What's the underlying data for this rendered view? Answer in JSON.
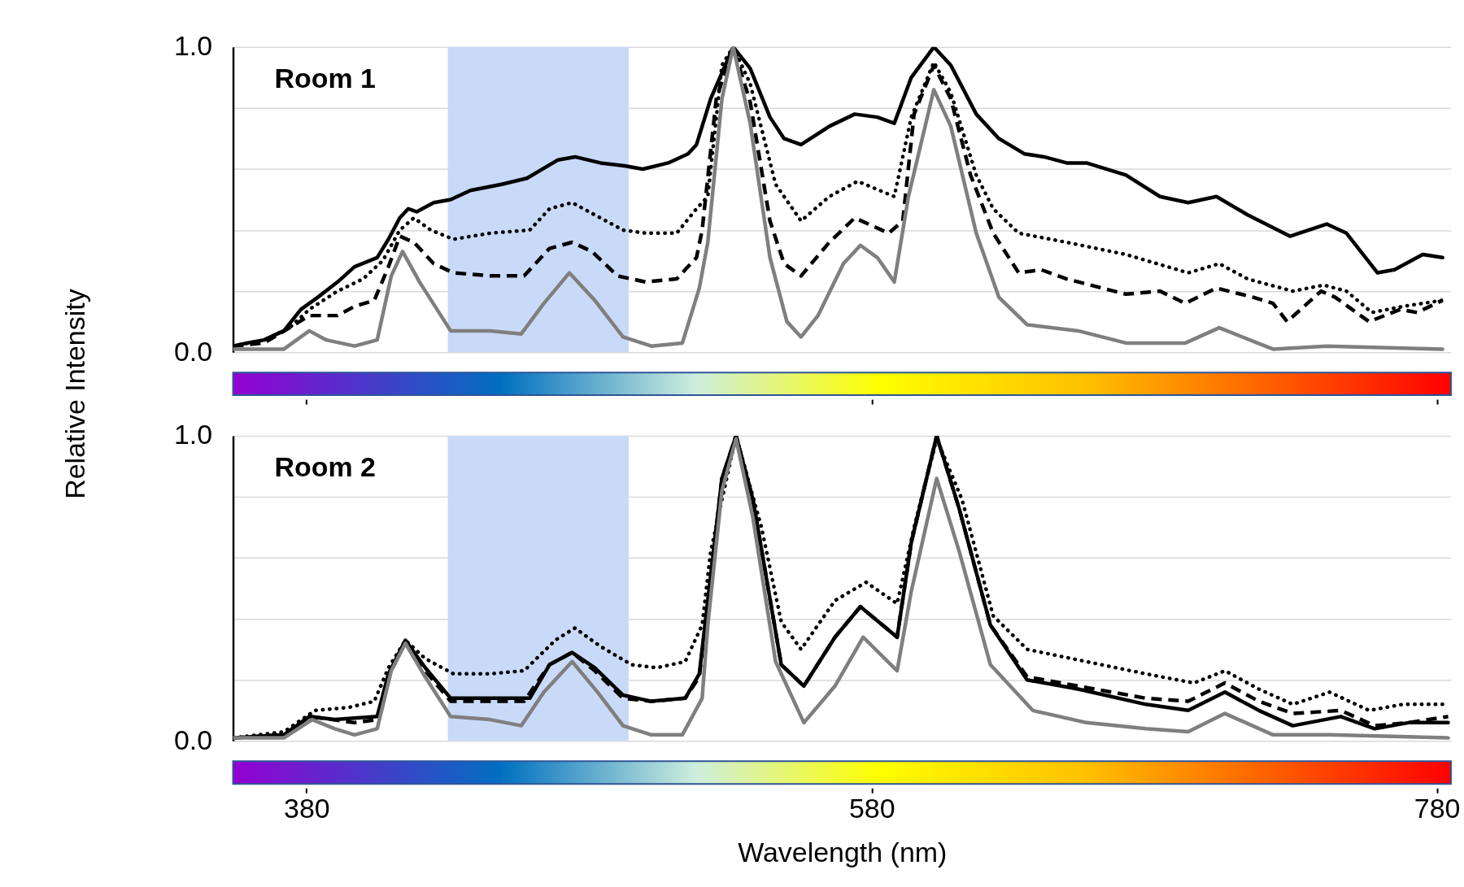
{
  "chart_data": [
    {
      "type": "line",
      "title": "Room 1",
      "ylabel": "Relative Intensity",
      "xlim": [
        354,
        785
      ],
      "ylim": [
        0,
        1
      ],
      "xticks": [
        380,
        580,
        780
      ],
      "yticks": [
        {
          "value": 0,
          "label": "0.0"
        },
        {
          "value": 0.2,
          "label": null
        },
        {
          "value": 0.4,
          "label": null
        },
        {
          "value": 0.6,
          "label": null
        },
        {
          "value": 0.8,
          "label": null
        },
        {
          "value": 1,
          "label": "1.0"
        }
      ],
      "grid": "y",
      "tick_labels": "y",
      "bands": [
        {
          "axis": "x",
          "from": 430,
          "to": 494,
          "color": "#c9daf8"
        }
      ],
      "series": [
        {
          "color": "#000000",
          "line_style": "solid",
          "x": [
            354,
            359,
            365,
            372,
            378,
            384,
            391,
            397,
            405,
            409,
            413,
            416,
            419,
            425,
            431,
            438,
            449,
            458,
            469,
            475,
            484,
            493,
            499,
            508,
            515,
            518,
            523,
            531,
            537,
            544,
            549,
            555,
            565,
            574,
            582,
            588,
            594,
            602,
            608,
            617,
            625,
            634,
            641,
            649,
            656,
            670,
            682,
            692,
            702,
            713,
            728,
            741,
            748,
            759,
            765,
            775,
            782
          ],
          "values": [
            0.02,
            0.03,
            0.04,
            0.07,
            0.14,
            0.18,
            0.23,
            0.28,
            0.31,
            0.37,
            0.44,
            0.47,
            0.46,
            0.49,
            0.5,
            0.53,
            0.55,
            0.57,
            0.63,
            0.64,
            0.62,
            0.61,
            0.6,
            0.62,
            0.65,
            0.68,
            0.83,
            1.0,
            0.93,
            0.77,
            0.7,
            0.68,
            0.74,
            0.78,
            0.77,
            0.75,
            0.9,
            1.0,
            0.94,
            0.78,
            0.7,
            0.65,
            0.64,
            0.62,
            0.62,
            0.58,
            0.51,
            0.49,
            0.51,
            0.45,
            0.38,
            0.42,
            0.39,
            0.26,
            0.27,
            0.32,
            0.31
          ]
        },
        {
          "color": "#000000",
          "line_style": "dotted",
          "x": [
            354,
            365,
            374,
            381,
            391,
            400,
            407,
            413,
            418,
            424,
            432,
            445,
            459,
            466,
            474,
            482,
            492,
            500,
            511,
            518,
            522,
            527,
            531,
            537,
            546,
            555,
            565,
            575,
            588,
            594,
            602,
            608,
            617,
            623,
            632,
            649,
            670,
            692,
            703,
            713,
            729,
            740,
            748,
            757,
            768,
            782
          ],
          "values": [
            0.02,
            0.04,
            0.08,
            0.14,
            0.2,
            0.24,
            0.3,
            0.4,
            0.44,
            0.4,
            0.37,
            0.39,
            0.4,
            0.47,
            0.49,
            0.45,
            0.4,
            0.39,
            0.39,
            0.47,
            0.51,
            0.94,
            1.0,
            0.88,
            0.55,
            0.43,
            0.51,
            0.56,
            0.51,
            0.77,
            0.95,
            0.85,
            0.58,
            0.47,
            0.39,
            0.36,
            0.32,
            0.26,
            0.29,
            0.24,
            0.2,
            0.22,
            0.2,
            0.13,
            0.15,
            0.17
          ]
        },
        {
          "color": "#000000",
          "line_style": "dashed",
          "x": [
            354,
            365,
            374,
            381,
            391,
            397,
            404,
            409,
            413,
            418,
            425,
            432,
            445,
            457,
            466,
            474,
            481,
            490,
            500,
            511,
            518,
            520,
            525,
            531,
            537,
            544,
            549,
            555,
            565,
            574,
            586,
            591,
            595,
            602,
            608,
            615,
            623,
            632,
            640,
            649,
            670,
            682,
            691,
            702,
            715,
            722,
            727,
            739,
            744,
            756,
            767,
            773,
            782
          ],
          "values": [
            0.02,
            0.03,
            0.08,
            0.12,
            0.12,
            0.15,
            0.17,
            0.28,
            0.38,
            0.36,
            0.29,
            0.26,
            0.25,
            0.25,
            0.34,
            0.36,
            0.33,
            0.25,
            0.23,
            0.24,
            0.31,
            0.4,
            0.83,
            1.0,
            0.82,
            0.43,
            0.29,
            0.25,
            0.36,
            0.44,
            0.39,
            0.43,
            0.78,
            0.94,
            0.83,
            0.58,
            0.39,
            0.26,
            0.27,
            0.24,
            0.19,
            0.2,
            0.16,
            0.21,
            0.18,
            0.16,
            0.1,
            0.2,
            0.18,
            0.1,
            0.14,
            0.13,
            0.17
          ]
        },
        {
          "color": "#7f7f7f",
          "line_style": "solid",
          "x": [
            354,
            372,
            381,
            387,
            397,
            405,
            410,
            414,
            420,
            431,
            445,
            456,
            464,
            473,
            482,
            492,
            502,
            513,
            519,
            522,
            527,
            531,
            537,
            544,
            550,
            555,
            561,
            570,
            576,
            582,
            588,
            593,
            602,
            608,
            617,
            625,
            635,
            653,
            670,
            691,
            703,
            722,
            741,
            782
          ],
          "values": [
            0.01,
            0.01,
            0.07,
            0.04,
            0.02,
            0.04,
            0.25,
            0.33,
            0.23,
            0.07,
            0.07,
            0.06,
            0.16,
            0.26,
            0.17,
            0.05,
            0.02,
            0.03,
            0.21,
            0.36,
            0.83,
            1.0,
            0.75,
            0.31,
            0.1,
            0.05,
            0.12,
            0.29,
            0.35,
            0.31,
            0.23,
            0.51,
            0.86,
            0.74,
            0.39,
            0.18,
            0.09,
            0.07,
            0.03,
            0.03,
            0.08,
            0.01,
            0.02,
            0.01
          ]
        }
      ]
    },
    {
      "type": "line",
      "title": "Room 2",
      "xlabel": "Wavelength (nm)",
      "xlim": [
        354,
        785
      ],
      "ylim": [
        0,
        1
      ],
      "xticks": [
        380,
        580,
        780
      ],
      "yticks": [
        {
          "value": 0,
          "label": "0.0"
        },
        {
          "value": 0.2,
          "label": null
        },
        {
          "value": 0.4,
          "label": null
        },
        {
          "value": 0.6,
          "label": null
        },
        {
          "value": 0.8,
          "label": null
        },
        {
          "value": 1,
          "label": "1.0"
        }
      ],
      "grid": "y",
      "bands": [
        {
          "axis": "x",
          "from": 430,
          "to": 494,
          "color": "#c9daf8"
        }
      ],
      "series": [
        {
          "color": "#000000",
          "line_style": "solid",
          "x": [
            354,
            372,
            381,
            390,
            405,
            409,
            415,
            422,
            431,
            445,
            459,
            466,
            474,
            482,
            492,
            502,
            514,
            519,
            522,
            527,
            532,
            538,
            548,
            556,
            567,
            576,
            589,
            594,
            603,
            611,
            622,
            635,
            653,
            677,
            692,
            705,
            717,
            729,
            746,
            758,
            770,
            784
          ],
          "values": [
            0.01,
            0.02,
            0.08,
            0.07,
            0.08,
            0.22,
            0.33,
            0.24,
            0.14,
            0.14,
            0.14,
            0.25,
            0.29,
            0.24,
            0.15,
            0.13,
            0.14,
            0.22,
            0.46,
            0.86,
            1.0,
            0.79,
            0.25,
            0.18,
            0.34,
            0.44,
            0.34,
            0.65,
            1.0,
            0.76,
            0.38,
            0.2,
            0.17,
            0.12,
            0.1,
            0.16,
            0.1,
            0.05,
            0.08,
            0.04,
            0.06,
            0.06
          ]
        },
        {
          "color": "#000000",
          "line_style": "dotted",
          "x": [
            354,
            372,
            383,
            395,
            404,
            409,
            415,
            422,
            432,
            445,
            457,
            468,
            475,
            484,
            495,
            504,
            514,
            520,
            523,
            532,
            541,
            548,
            555,
            567,
            578,
            589,
            595,
            603,
            612,
            623,
            635,
            656,
            677,
            694,
            705,
            717,
            729,
            742,
            756,
            768,
            782
          ],
          "values": [
            0.01,
            0.03,
            0.1,
            0.11,
            0.13,
            0.24,
            0.33,
            0.27,
            0.22,
            0.22,
            0.23,
            0.33,
            0.37,
            0.31,
            0.25,
            0.24,
            0.26,
            0.38,
            0.62,
            1.0,
            0.7,
            0.39,
            0.3,
            0.46,
            0.52,
            0.45,
            0.7,
            0.99,
            0.79,
            0.41,
            0.3,
            0.26,
            0.22,
            0.19,
            0.23,
            0.17,
            0.12,
            0.16,
            0.1,
            0.12,
            0.12
          ]
        },
        {
          "color": "#000000",
          "line_style": "dashed",
          "x": [
            354,
            372,
            381,
            397,
            405,
            409,
            415,
            422,
            431,
            445,
            457,
            466,
            474,
            482,
            492,
            502,
            514,
            519,
            522,
            527,
            532,
            538,
            548,
            556,
            567,
            576,
            589,
            594,
            603,
            611,
            622,
            635,
            653,
            677,
            692,
            705,
            717,
            729,
            746,
            758,
            770,
            784
          ],
          "values": [
            0.01,
            0.02,
            0.08,
            0.06,
            0.07,
            0.21,
            0.33,
            0.23,
            0.13,
            0.13,
            0.13,
            0.25,
            0.29,
            0.23,
            0.14,
            0.13,
            0.14,
            0.21,
            0.45,
            0.86,
            1.0,
            0.79,
            0.25,
            0.18,
            0.34,
            0.44,
            0.34,
            0.65,
            1.0,
            0.76,
            0.38,
            0.21,
            0.18,
            0.14,
            0.13,
            0.19,
            0.13,
            0.09,
            0.1,
            0.05,
            0.06,
            0.08
          ]
        },
        {
          "color": "#7f7f7f",
          "line_style": "solid",
          "x": [
            354,
            372,
            382,
            390,
            397,
            405,
            410,
            415,
            422,
            431,
            445,
            456,
            464,
            474,
            483,
            492,
            502,
            513,
            520,
            522,
            527,
            532,
            538,
            546,
            556,
            567,
            577,
            589,
            594,
            603,
            611,
            622,
            637,
            656,
            677,
            692,
            705,
            722,
            742,
            784
          ],
          "values": [
            0.01,
            0.01,
            0.07,
            0.04,
            0.02,
            0.04,
            0.23,
            0.32,
            0.21,
            0.08,
            0.07,
            0.05,
            0.16,
            0.26,
            0.16,
            0.05,
            0.02,
            0.02,
            0.14,
            0.38,
            0.82,
            0.99,
            0.73,
            0.26,
            0.06,
            0.18,
            0.34,
            0.23,
            0.49,
            0.86,
            0.62,
            0.25,
            0.1,
            0.06,
            0.04,
            0.03,
            0.09,
            0.02,
            0.02,
            0.01
          ]
        }
      ]
    }
  ]
}
